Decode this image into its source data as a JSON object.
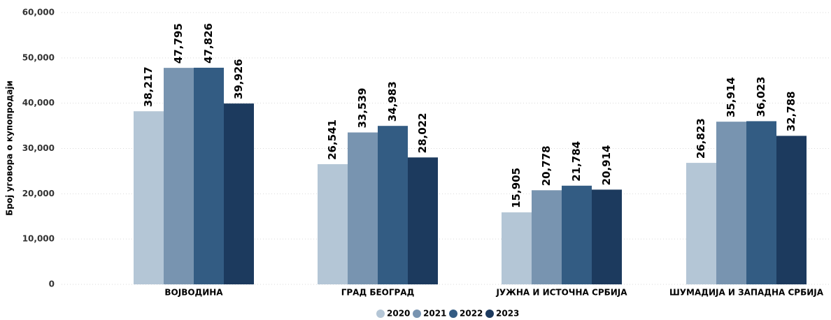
{
  "chart_data": {
    "type": "bar",
    "y_label": "Број уговора о купопродаји",
    "categories": [
      "ВОЈВОДИНА",
      "ГРАД БЕОГРАД",
      "ЈУЖНА И ИСТОЧНА СРБИЈА",
      "ШУМАДИЈА И ЗАПАДНА СРБИЈА"
    ],
    "series": [
      {
        "name": "2020",
        "color": "#b4c6d6",
        "values": [
          38217,
          26541,
          15905,
          26823
        ],
        "value_labels": [
          "38,217",
          "26,541",
          "15,905",
          "26,823"
        ]
      },
      {
        "name": "2021",
        "color": "#7894b0",
        "values": [
          47795,
          33539,
          20778,
          35914
        ],
        "value_labels": [
          "47,795",
          "33,539",
          "20,778",
          "35,914"
        ]
      },
      {
        "name": "2022",
        "color": "#335c83",
        "values": [
          47826,
          34983,
          21784,
          36023
        ],
        "value_labels": [
          "47,826",
          "34,983",
          "21,784",
          "36,023"
        ]
      },
      {
        "name": "2023",
        "color": "#1c3a5e",
        "values": [
          39926,
          28022,
          20914,
          32788
        ],
        "value_labels": [
          "39,926",
          "28,022",
          "20,914",
          "32,788"
        ]
      }
    ],
    "ylim": [
      0,
      60000
    ],
    "yticks": [
      0,
      {
        "value": 10000,
        "label": "10,000"
      },
      {
        "value": 20000,
        "label": "20,000"
      },
      {
        "value": 30000,
        "label": "30,000"
      },
      {
        "value": 40000,
        "label": "40,000"
      },
      {
        "value": 50000,
        "label": "50,000"
      },
      {
        "value": 60000,
        "label": "60,000"
      }
    ],
    "grid": true
  }
}
